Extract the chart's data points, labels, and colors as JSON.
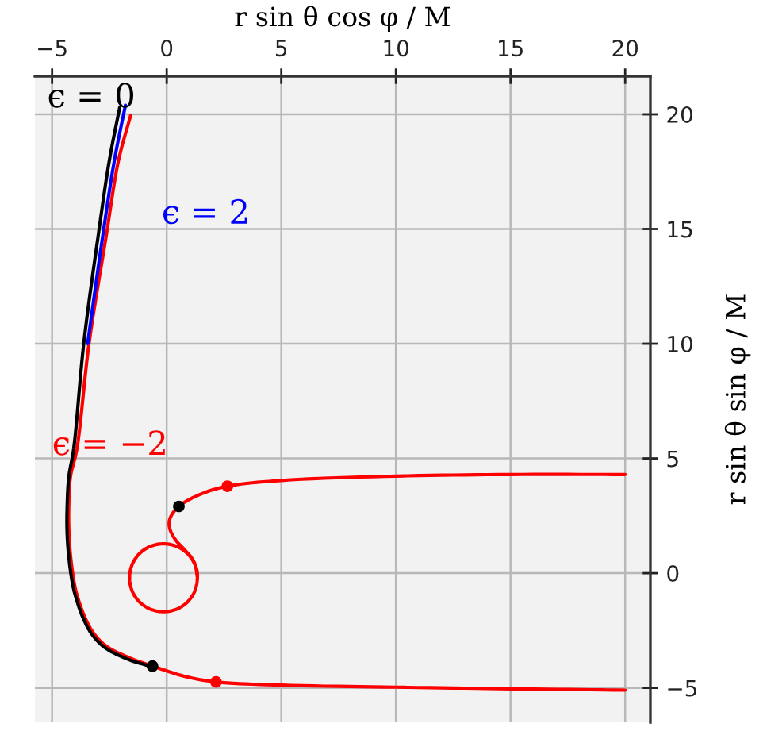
{
  "chart_data": {
    "type": "line",
    "xlabel": "r sin θ cos φ / M",
    "ylabel": "r sin θ sin φ / M",
    "xlim": [
      -5.75,
      21.1
    ],
    "ylim": [
      -6.5,
      21.66
    ],
    "xticks": [
      {
        "value": -5,
        "label": "−5"
      },
      0,
      5,
      10,
      15,
      20
    ],
    "yticks": [
      {
        "value": -5,
        "label": "−5"
      },
      0,
      5,
      10,
      15,
      20
    ],
    "grid": true,
    "series": [
      {
        "name": "ϵ = −2",
        "color": "#ff0000",
        "x": [
          20,
          15,
          10,
          5,
          2.15,
          0.8,
          -0.62,
          -1.6,
          -2.65,
          -3.2,
          -3.58,
          -3.9,
          -4.04,
          -4.2,
          -4.27,
          -4.27,
          -4.2,
          -3.92,
          -3.39,
          -2.65,
          -2.1,
          -1.57,
          null,
          20,
          15,
          10,
          5,
          2.65,
          1.5,
          0.53,
          0.15,
          0.12,
          0.35,
          0.75,
          1.1,
          1.3,
          1.34,
          1.23,
          0.91,
          0.43,
          -0.14,
          -0.71,
          -1.19,
          -1.51,
          -1.62,
          -1.51,
          -1.19,
          -0.71,
          -0.14,
          0.43,
          0.91,
          1.23,
          1.34
        ],
        "values": [
          -5.1,
          -5.04,
          -4.97,
          -4.88,
          -4.74,
          -4.5,
          -4.05,
          -3.7,
          -3.17,
          -2.6,
          -1.9,
          -1.0,
          -0.4,
          0.8,
          1.94,
          3.0,
          4.2,
          5.4,
          10.0,
          14.63,
          18.0,
          19.96,
          null,
          4.3,
          4.3,
          4.23,
          4.04,
          3.79,
          3.45,
          2.91,
          2.4,
          2.0,
          1.5,
          1.05,
          0.65,
          0.2,
          -0.2,
          -0.77,
          -1.25,
          -1.57,
          -1.68,
          -1.57,
          -1.25,
          -0.77,
          -0.2,
          0.37,
          0.85,
          1.17,
          1.28,
          1.17,
          0.85,
          0.37,
          -0.2
        ]
      },
      {
        "name": "ϵ = 0",
        "color": "#000000",
        "x": [
          -0.62,
          -1.62,
          -2.7,
          -3.28,
          -3.66,
          -3.98,
          -4.12,
          -4.28,
          -4.35,
          -4.34,
          -4.27,
          -4.06,
          -3.62,
          -3.0,
          -2.5,
          -2.05
        ],
        "values": [
          -4.08,
          -3.78,
          -3.24,
          -2.64,
          -1.92,
          -1.0,
          -0.4,
          0.8,
          1.94,
          3.0,
          4.2,
          5.4,
          10.0,
          14.63,
          18.0,
          20.3
        ]
      },
      {
        "name": "ϵ = 2",
        "color": "#0000ff",
        "x": [
          -3.45,
          -2.8,
          -2.28,
          -1.8
        ],
        "values": [
          10.0,
          14.63,
          18.0,
          20.4
        ]
      },
      {
        "type": "scatter",
        "marker": "circle",
        "color": "#000000",
        "x": [
          -0.62,
          0.53
        ],
        "values": [
          -4.05,
          2.91
        ]
      },
      {
        "type": "scatter",
        "marker": "circle",
        "color": "#ff0000",
        "x": [
          2.15,
          2.65
        ],
        "values": [
          -4.74,
          3.79
        ]
      }
    ]
  }
}
